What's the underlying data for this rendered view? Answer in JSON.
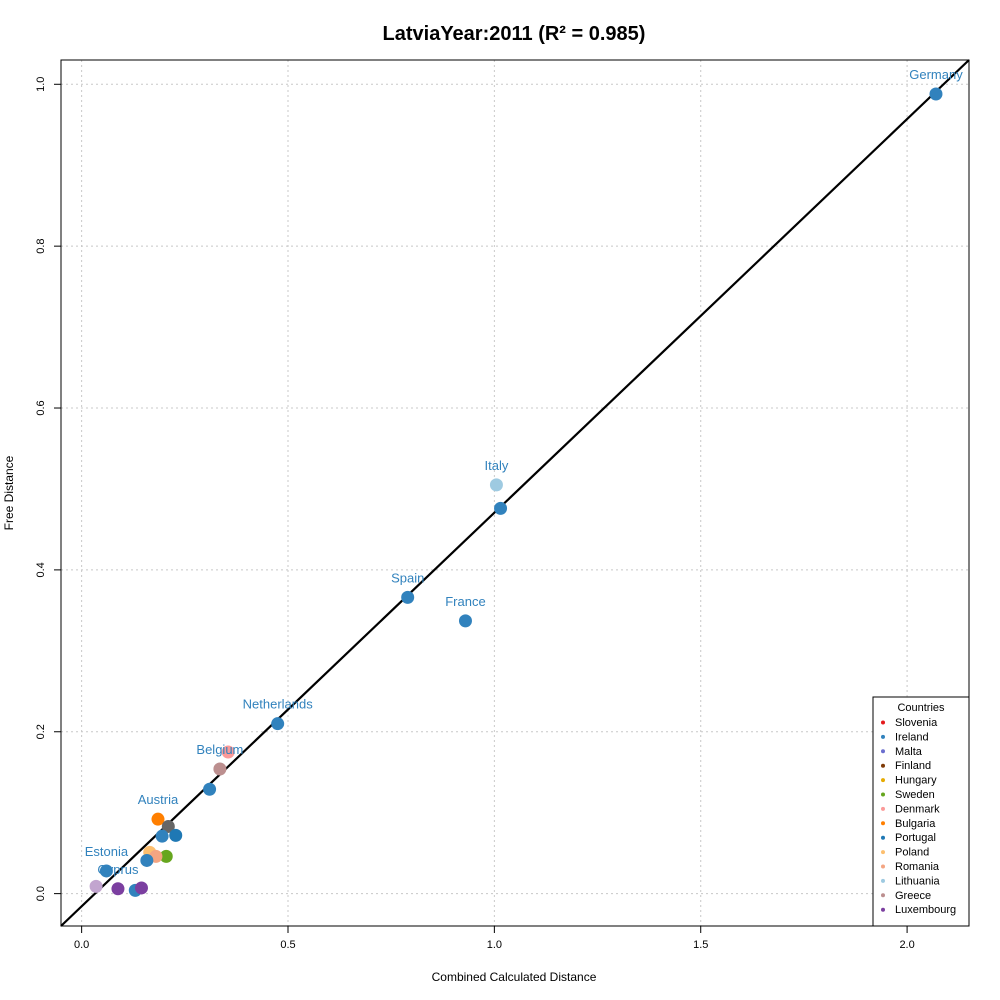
{
  "chart_data": {
    "type": "scatter",
    "title": "LatviaYear:2011 (R² = 0.985)",
    "xlabel": "Combined Calculated Distance",
    "ylabel": "Free Distance",
    "xlim": [
      -0.05,
      2.15
    ],
    "ylim": [
      -0.04,
      1.03
    ],
    "xticks": [
      0.0,
      0.5,
      1.0,
      1.5,
      2.0
    ],
    "xtick_labels": [
      "0.0",
      "0.5",
      "1.0",
      "1.5",
      "2.0"
    ],
    "yticks": [
      0.0,
      0.2,
      0.4,
      0.6,
      0.8,
      1.0
    ],
    "ytick_labels": [
      "0.0",
      "0.2",
      "0.4",
      "0.6",
      "0.8",
      "1.0"
    ],
    "grid": true,
    "fit_line": {
      "x": [
        -0.05,
        2.15
      ],
      "y": [
        -0.04,
        1.03
      ],
      "color": "#000000"
    },
    "legend": {
      "title": "Countries",
      "placement": "bottom-right",
      "entries": [
        {
          "name": "Slovenia",
          "color": "#e41a1c"
        },
        {
          "name": "Ireland",
          "color": "#3182bd"
        },
        {
          "name": "Malta",
          "color": "#6b6ecf"
        },
        {
          "name": "Finland",
          "color": "#7f3b08"
        },
        {
          "name": "Hungary",
          "color": "#e6ab02"
        },
        {
          "name": "Sweden",
          "color": "#66a61e"
        },
        {
          "name": "Denmark",
          "color": "#fb9a99"
        },
        {
          "name": "Bulgaria",
          "color": "#ff7f00"
        },
        {
          "name": "Portugal",
          "color": "#1f78b4"
        },
        {
          "name": "Poland",
          "color": "#fdbf6f"
        },
        {
          "name": "Romania",
          "color": "#f4a582"
        },
        {
          "name": "Lithuania",
          "color": "#9ecae1"
        },
        {
          "name": "Greece",
          "color": "#bc8f8f"
        },
        {
          "name": "Luxembourg",
          "color": "#7b3fa0"
        }
      ]
    },
    "points": [
      {
        "x": 2.07,
        "y": 0.988,
        "color": "#3182bd",
        "label": "Germany"
      },
      {
        "x": 1.015,
        "y": 0.476,
        "color": "#3182bd",
        "label": ""
      },
      {
        "x": 1.005,
        "y": 0.505,
        "color": "#9ecae1",
        "label": "Italy"
      },
      {
        "x": 0.79,
        "y": 0.366,
        "color": "#3182bd",
        "label": "Spain"
      },
      {
        "x": 0.93,
        "y": 0.337,
        "color": "#3182bd",
        "label": "France"
      },
      {
        "x": 0.475,
        "y": 0.21,
        "color": "#3182bd",
        "label": "Netherlands"
      },
      {
        "x": 0.355,
        "y": 0.175,
        "color": "#fb9a99",
        "label": ""
      },
      {
        "x": 0.335,
        "y": 0.154,
        "color": "#bc8f8f",
        "label": "Belgium"
      },
      {
        "x": 0.31,
        "y": 0.129,
        "color": "#3182bd",
        "label": ""
      },
      {
        "x": 0.185,
        "y": 0.092,
        "color": "#ff7f00",
        "label": "Austria"
      },
      {
        "x": 0.21,
        "y": 0.083,
        "color": "#666666",
        "label": ""
      },
      {
        "x": 0.195,
        "y": 0.071,
        "color": "#3182bd",
        "label": ""
      },
      {
        "x": 0.228,
        "y": 0.072,
        "color": "#1f78b4",
        "label": ""
      },
      {
        "x": 0.205,
        "y": 0.046,
        "color": "#66a61e",
        "label": ""
      },
      {
        "x": 0.165,
        "y": 0.051,
        "color": "#fdbf6f",
        "label": ""
      },
      {
        "x": 0.18,
        "y": 0.046,
        "color": "#f4a582",
        "label": ""
      },
      {
        "x": 0.158,
        "y": 0.041,
        "color": "#3182bd",
        "label": ""
      },
      {
        "x": 0.06,
        "y": 0.028,
        "color": "#3182bd",
        "label": "Estonia"
      },
      {
        "x": 0.035,
        "y": 0.009,
        "color": "#c2a5cf",
        "label": ""
      },
      {
        "x": 0.088,
        "y": 0.006,
        "color": "#7b3fa0",
        "label": "Cyprus"
      },
      {
        "x": 0.13,
        "y": 0.004,
        "color": "#3182bd",
        "label": ""
      },
      {
        "x": 0.145,
        "y": 0.007,
        "color": "#7b3fa0",
        "label": ""
      }
    ],
    "label_color": "#3182bd"
  }
}
